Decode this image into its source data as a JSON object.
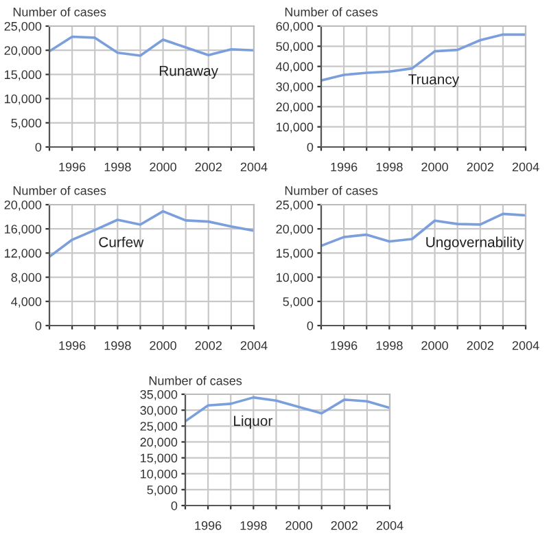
{
  "chart_data": [
    {
      "type": "line",
      "ylabel": "Number of cases",
      "x": [
        1995,
        1996,
        1997,
        1998,
        1999,
        2000,
        2001,
        2002,
        2003,
        2004
      ],
      "series": [
        {
          "name": "Runaway",
          "color": "#7b9fdc",
          "values": [
            19800,
            22800,
            22600,
            19500,
            18900,
            22200,
            20600,
            19000,
            20200,
            20000
          ]
        }
      ],
      "xlim": [
        1995,
        2004
      ],
      "xticks": [
        {
          "value": 1995,
          "label": null
        },
        1996,
        {
          "value": 1997,
          "label": null
        },
        1998,
        {
          "value": 1999,
          "label": null
        },
        2000,
        {
          "value": 2001,
          "label": null
        },
        2002,
        {
          "value": 2003,
          "label": null
        },
        2004
      ],
      "ylim": [
        0,
        25000
      ],
      "yticks": [
        {
          "value": 0,
          "label": "0"
        },
        {
          "value": 5000,
          "label": "5,000"
        },
        {
          "value": 10000,
          "label": "10,000"
        },
        {
          "value": 15000,
          "label": "15,000"
        },
        {
          "value": 20000,
          "label": "20,000"
        },
        {
          "value": 25000,
          "label": "25,000"
        }
      ],
      "grid": true
    },
    {
      "type": "line",
      "ylabel": "Number of cases",
      "x": [
        1995,
        1996,
        1997,
        1998,
        1999,
        2000,
        2001,
        2002,
        2003,
        2004
      ],
      "series": [
        {
          "name": "Truancy",
          "color": "#7b9fdc",
          "values": [
            33000,
            35800,
            36800,
            37400,
            39000,
            47500,
            48200,
            53000,
            55800,
            55800
          ]
        }
      ],
      "xlim": [
        1995,
        2004
      ],
      "xticks": [
        {
          "value": 1995,
          "label": null
        },
        1996,
        {
          "value": 1997,
          "label": null
        },
        1998,
        {
          "value": 1999,
          "label": null
        },
        2000,
        {
          "value": 2001,
          "label": null
        },
        2002,
        {
          "value": 2003,
          "label": null
        },
        2004
      ],
      "ylim": [
        0,
        60000
      ],
      "yticks": [
        {
          "value": 0,
          "label": "0"
        },
        {
          "value": 10000,
          "label": "10,000"
        },
        {
          "value": 20000,
          "label": "20,000"
        },
        {
          "value": 30000,
          "label": "30,000"
        },
        {
          "value": 40000,
          "label": "40,000"
        },
        {
          "value": 50000,
          "label": "50,000"
        },
        {
          "value": 60000,
          "label": "60,000"
        }
      ],
      "grid": true
    },
    {
      "type": "line",
      "ylabel": "Number of cases",
      "x": [
        1995,
        1996,
        1997,
        1998,
        1999,
        2000,
        2001,
        2002,
        2003,
        2004
      ],
      "series": [
        {
          "name": "Curfew",
          "color": "#7b9fdc",
          "values": [
            11400,
            14200,
            15800,
            17500,
            16700,
            18900,
            17400,
            17200,
            16400,
            15700
          ]
        }
      ],
      "xlim": [
        1995,
        2004
      ],
      "xticks": [
        {
          "value": 1995,
          "label": null
        },
        1996,
        {
          "value": 1997,
          "label": null
        },
        1998,
        {
          "value": 1999,
          "label": null
        },
        2000,
        {
          "value": 2001,
          "label": null
        },
        2002,
        {
          "value": 2003,
          "label": null
        },
        2004
      ],
      "ylim": [
        0,
        20000
      ],
      "yticks": [
        {
          "value": 0,
          "label": "0"
        },
        {
          "value": 4000,
          "label": "4,000"
        },
        {
          "value": 8000,
          "label": "8,000"
        },
        {
          "value": 12000,
          "label": "12,000"
        },
        {
          "value": 16000,
          "label": "16,000"
        },
        {
          "value": 20000,
          "label": "20,000"
        }
      ],
      "grid": true
    },
    {
      "type": "line",
      "ylabel": "Number of cases",
      "x": [
        1995,
        1996,
        1997,
        1998,
        1999,
        2000,
        2001,
        2002,
        2003,
        2004
      ],
      "series": [
        {
          "name": "Ungovernability",
          "color": "#7b9fdc",
          "values": [
            16500,
            18300,
            18800,
            17400,
            17900,
            21700,
            21000,
            20900,
            23100,
            22800
          ]
        }
      ],
      "xlim": [
        1995,
        2004
      ],
      "xticks": [
        {
          "value": 1995,
          "label": null
        },
        1996,
        {
          "value": 1997,
          "label": null
        },
        1998,
        {
          "value": 1999,
          "label": null
        },
        2000,
        {
          "value": 2001,
          "label": null
        },
        2002,
        {
          "value": 2003,
          "label": null
        },
        2004
      ],
      "ylim": [
        0,
        25000
      ],
      "yticks": [
        {
          "value": 0,
          "label": "0"
        },
        {
          "value": 5000,
          "label": "5,000"
        },
        {
          "value": 10000,
          "label": "10,000"
        },
        {
          "value": 15000,
          "label": "15,000"
        },
        {
          "value": 20000,
          "label": "20,000"
        },
        {
          "value": 25000,
          "label": "25,000"
        }
      ],
      "grid": true
    },
    {
      "type": "line",
      "ylabel": "Number of cases",
      "x": [
        1995,
        1996,
        1997,
        1998,
        1999,
        2000,
        2001,
        2002,
        2003,
        2004
      ],
      "series": [
        {
          "name": "Liquor",
          "color": "#7b9fdc",
          "values": [
            26500,
            31500,
            32000,
            34000,
            33000,
            31000,
            29000,
            33300,
            32800,
            30700
          ]
        }
      ],
      "xlim": [
        1995,
        2004
      ],
      "xticks": [
        {
          "value": 1995,
          "label": null
        },
        1996,
        {
          "value": 1997,
          "label": null
        },
        1998,
        {
          "value": 1999,
          "label": null
        },
        2000,
        {
          "value": 2001,
          "label": null
        },
        2002,
        {
          "value": 2003,
          "label": null
        },
        2004
      ],
      "ylim": [
        0,
        35000
      ],
      "yticks": [
        {
          "value": 0,
          "label": "0"
        },
        {
          "value": 5000,
          "label": "5,000"
        },
        {
          "value": 10000,
          "label": "10,000"
        },
        {
          "value": 15000,
          "label": "15,000"
        },
        {
          "value": 20000,
          "label": "20,000"
        },
        {
          "value": 25000,
          "label": "25,000"
        },
        {
          "value": 30000,
          "label": "30,000"
        },
        {
          "value": 35000,
          "label": "35,000"
        }
      ],
      "grid": true
    }
  ]
}
